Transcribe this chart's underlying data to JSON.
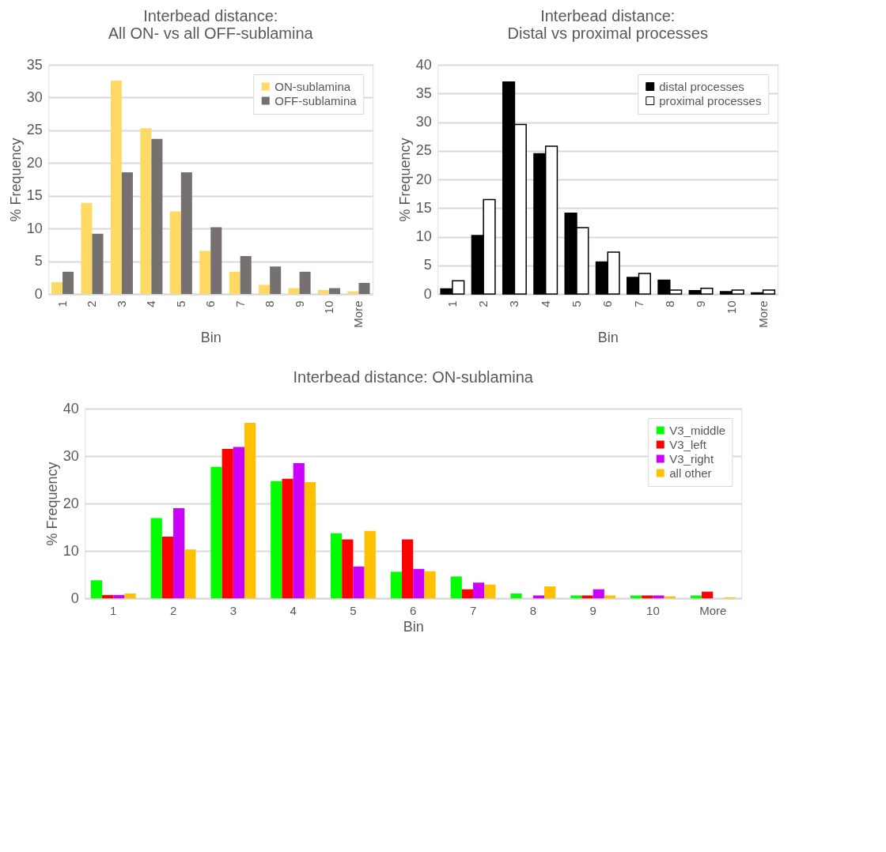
{
  "chart_data": [
    {
      "type": "bar",
      "title": "Interbead distance: All ON- vs all OFF-sublamina",
      "xlabel": "Bin",
      "ylabel": "% Frequency",
      "categories": [
        "1",
        "2",
        "3",
        "4",
        "5",
        "6",
        "7",
        "8",
        "9",
        "10",
        "More"
      ],
      "series": [
        {
          "name": "ON-sublamina",
          "color": "#ffd966",
          "values": [
            1.8,
            13.9,
            32.6,
            25.3,
            12.6,
            6.6,
            3.4,
            1.4,
            0.9,
            0.6,
            0.4
          ]
        },
        {
          "name": "OFF-sublamina",
          "color": "#767171",
          "values": [
            3.4,
            9.2,
            18.6,
            23.7,
            18.6,
            10.2,
            5.8,
            4.2,
            3.4,
            0.9,
            1.7
          ]
        }
      ],
      "ylim": [
        0,
        35
      ],
      "yticks": [
        0,
        5,
        10,
        15,
        20,
        25,
        30,
        35
      ],
      "grid": "y",
      "legend": "top right"
    },
    {
      "type": "bar",
      "title": "Interbead distance: Distal vs proximal processes",
      "xlabel": "Bin",
      "ylabel": "% Frequency",
      "categories": [
        "1",
        "2",
        "3",
        "4",
        "5",
        "6",
        "7",
        "8",
        "9",
        "10",
        "More"
      ],
      "series": [
        {
          "name": "distal processes",
          "color": "#000000",
          "values": [
            0.9,
            10.2,
            37.0,
            24.5,
            14.1,
            5.6,
            2.9,
            2.4,
            0.6,
            0.4,
            0.2
          ]
        },
        {
          "name": "proximal processes",
          "color": "#ffffff",
          "values": [
            2.3,
            16.5,
            29.6,
            25.8,
            11.6,
            7.3,
            3.6,
            0.7,
            1.0,
            0.7,
            0.7
          ]
        }
      ],
      "ylim": [
        0,
        40
      ],
      "yticks": [
        0,
        5,
        10,
        15,
        20,
        25,
        30,
        35,
        40
      ],
      "grid": "y",
      "legend": "top right"
    },
    {
      "type": "bar",
      "title": "Interbead distance: ON-sublamina",
      "xlabel": "Bin",
      "ylabel": "% Frequency",
      "categories": [
        "1",
        "2",
        "3",
        "4",
        "5",
        "6",
        "7",
        "8",
        "9",
        "10",
        "More"
      ],
      "series": [
        {
          "name": "V3_middle",
          "color": "#00ff00",
          "values": [
            3.8,
            16.9,
            27.7,
            24.7,
            13.7,
            5.6,
            4.6,
            1.0,
            0.6,
            0.6,
            0.6
          ]
        },
        {
          "name": "V3_left",
          "color": "#ff0000",
          "values": [
            0.7,
            13.0,
            31.5,
            25.2,
            12.4,
            12.4,
            1.9,
            0,
            0.6,
            0.6,
            1.4
          ]
        },
        {
          "name": "V3_right",
          "color": "#cc00ff",
          "values": [
            0.7,
            19.0,
            31.9,
            28.5,
            6.7,
            6.2,
            3.3,
            0.6,
            1.9,
            0.6,
            0
          ]
        },
        {
          "name": "all other",
          "color": "#ffc000",
          "values": [
            1.0,
            10.3,
            37.0,
            24.5,
            14.2,
            5.7,
            2.9,
            2.5,
            0.6,
            0.4,
            0.2
          ]
        }
      ],
      "ylim": [
        0,
        40
      ],
      "yticks": [
        0,
        10,
        20,
        30,
        40
      ],
      "grid": "y",
      "legend": "top right"
    }
  ]
}
